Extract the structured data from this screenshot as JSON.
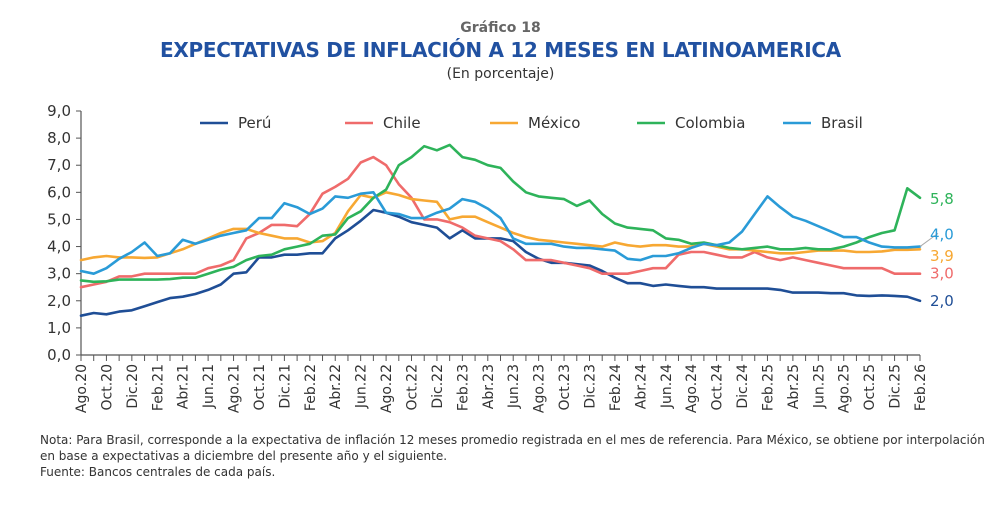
{
  "header": {
    "chart_number": "Gráfico 18",
    "title": "EXPECTATIVAS DE INFLACIÓN A 12 MESES EN LATINOAMERICA",
    "subtitle": "(En porcentaje)"
  },
  "notes": [
    "Nota: Para Brasil, corresponde a la expectativa de inflación 12 meses promedio registrada en el mes de referencia. Para México, se obtiene por interpolación",
    "en base a expectativas a diciembre del presente año y el siguiente.",
    "Fuente: Bancos centrales de cada país."
  ],
  "chart_data": {
    "type": "line",
    "title": "EXPECTATIVAS DE INFLACIÓN A 12 MESES EN LATINOAMERICA",
    "subtitle": "(En porcentaje)",
    "xlabel": "",
    "ylabel": "",
    "ylim": [
      0,
      9
    ],
    "yticks": [
      "0,0",
      "1,0",
      "2,0",
      "3,0",
      "4,0",
      "5,0",
      "6,0",
      "7,0",
      "8,0",
      "9,0"
    ],
    "grid": false,
    "legend_position": "top",
    "x_tick_labels": [
      "Ago.20",
      "Oct.20",
      "Dic.20",
      "Feb.21",
      "Abr.21",
      "Jun.21",
      "Ago.21",
      "Oct.21",
      "Dic.21",
      "Feb.22",
      "Abr.22",
      "Jun.22",
      "Ago.22",
      "Oct.22",
      "Dic.22",
      "Feb.23",
      "Abr.23",
      "Jun.23",
      "Ago.23",
      "Oct.23",
      "Dic.23",
      "Feb.24",
      "Abr.24",
      "Jun.24",
      "Ago.24",
      "Oct.24",
      "Dic.24",
      "Feb.25",
      "Abr.25",
      "Jun.25",
      "Ago.25",
      "Oct.25",
      "Dic.25",
      "Feb.26"
    ],
    "x_start": "Ago.20",
    "x_end": "Feb.26",
    "n_points": 67,
    "series": [
      {
        "name": "Perú",
        "color": "#1f4e96",
        "end_label": "2,0",
        "values": [
          1.45,
          1.55,
          1.5,
          1.6,
          1.65,
          1.8,
          1.95,
          2.1,
          2.15,
          2.25,
          2.4,
          2.6,
          3.0,
          3.05,
          3.6,
          3.6,
          3.7,
          3.7,
          3.75,
          3.75,
          4.3,
          4.6,
          4.95,
          5.35,
          5.25,
          5.1,
          4.9,
          4.8,
          4.7,
          4.3,
          4.6,
          4.3,
          4.3,
          4.3,
          4.2,
          3.8,
          3.55,
          3.4,
          3.4,
          3.35,
          3.3,
          3.1,
          2.85,
          2.65,
          2.65,
          2.55,
          2.6,
          2.55,
          2.5,
          2.5,
          2.45,
          2.45,
          2.45,
          2.45,
          2.45,
          2.4,
          2.3,
          2.3,
          2.3,
          2.28,
          2.28,
          2.2,
          2.18,
          2.2,
          2.18,
          2.15,
          2.0
        ]
      },
      {
        "name": "Chile",
        "color": "#ef6b6b",
        "end_label": "3,0",
        "values": [
          2.5,
          2.6,
          2.7,
          2.9,
          2.9,
          3.0,
          3.0,
          3.0,
          3.0,
          3.0,
          3.2,
          3.3,
          3.5,
          4.3,
          4.5,
          4.8,
          4.8,
          4.75,
          5.2,
          5.95,
          6.2,
          6.5,
          7.1,
          7.3,
          7.0,
          6.3,
          5.8,
          5.0,
          5.0,
          4.9,
          4.7,
          4.4,
          4.3,
          4.2,
          3.9,
          3.5,
          3.5,
          3.5,
          3.4,
          3.3,
          3.2,
          3.0,
          3.0,
          3.0,
          3.1,
          3.2,
          3.2,
          3.7,
          3.8,
          3.8,
          3.7,
          3.6,
          3.6,
          3.8,
          3.6,
          3.5,
          3.6,
          3.5,
          3.4,
          3.3,
          3.2,
          3.2,
          3.2,
          3.2,
          3.0,
          3.0,
          3.0
        ]
      },
      {
        "name": "México",
        "color": "#f7a833",
        "end_label": "3,9",
        "values": [
          3.5,
          3.6,
          3.65,
          3.6,
          3.6,
          3.58,
          3.6,
          3.75,
          3.9,
          4.1,
          4.3,
          4.5,
          4.65,
          4.65,
          4.5,
          4.4,
          4.3,
          4.3,
          4.15,
          4.2,
          4.5,
          5.3,
          5.9,
          5.8,
          6.0,
          5.9,
          5.75,
          5.7,
          5.65,
          5.0,
          5.1,
          5.1,
          4.9,
          4.7,
          4.5,
          4.35,
          4.25,
          4.2,
          4.15,
          4.1,
          4.05,
          4.0,
          4.15,
          4.05,
          4.0,
          4.05,
          4.05,
          4.0,
          4.0,
          4.1,
          4.0,
          3.9,
          3.9,
          3.85,
          3.8,
          3.75,
          3.75,
          3.8,
          3.85,
          3.85,
          3.85,
          3.8,
          3.8,
          3.82,
          3.88,
          3.88,
          3.9
        ]
      },
      {
        "name": "Colombia",
        "color": "#2eb35a",
        "end_label": "5,8",
        "values": [
          2.75,
          2.7,
          2.72,
          2.78,
          2.78,
          2.78,
          2.78,
          2.8,
          2.85,
          2.85,
          3.0,
          3.15,
          3.25,
          3.5,
          3.65,
          3.7,
          3.9,
          4.0,
          4.1,
          4.4,
          4.45,
          5.05,
          5.3,
          5.8,
          6.1,
          7.0,
          7.3,
          7.7,
          7.55,
          7.75,
          7.3,
          7.2,
          7.0,
          6.9,
          6.4,
          6.0,
          5.85,
          5.8,
          5.75,
          5.5,
          5.7,
          5.2,
          4.85,
          4.7,
          4.65,
          4.6,
          4.3,
          4.25,
          4.1,
          4.15,
          4.05,
          3.95,
          3.9,
          3.95,
          4.0,
          3.9,
          3.9,
          3.95,
          3.9,
          3.9,
          4.0,
          4.15,
          4.35,
          4.5,
          4.6,
          6.15,
          5.8
        ]
      },
      {
        "name": "Brasil",
        "color": "#2a9bd7",
        "end_label": "4,0",
        "values": [
          3.1,
          3.0,
          3.2,
          3.55,
          3.8,
          4.15,
          3.65,
          3.75,
          4.25,
          4.1,
          4.25,
          4.4,
          4.5,
          4.6,
          5.05,
          5.05,
          5.6,
          5.45,
          5.2,
          5.4,
          5.85,
          5.8,
          5.95,
          6.0,
          5.25,
          5.2,
          5.05,
          5.05,
          5.25,
          5.4,
          5.75,
          5.65,
          5.4,
          5.05,
          4.3,
          4.1,
          4.1,
          4.1,
          4.0,
          3.95,
          3.95,
          3.9,
          3.85,
          3.55,
          3.5,
          3.65,
          3.65,
          3.75,
          3.95,
          4.1,
          4.05,
          4.15,
          4.55,
          5.2,
          5.85,
          5.45,
          5.1,
          4.95,
          4.75,
          4.55,
          4.35,
          4.35,
          4.15,
          4.0,
          3.97,
          3.97,
          4.0
        ]
      }
    ]
  }
}
